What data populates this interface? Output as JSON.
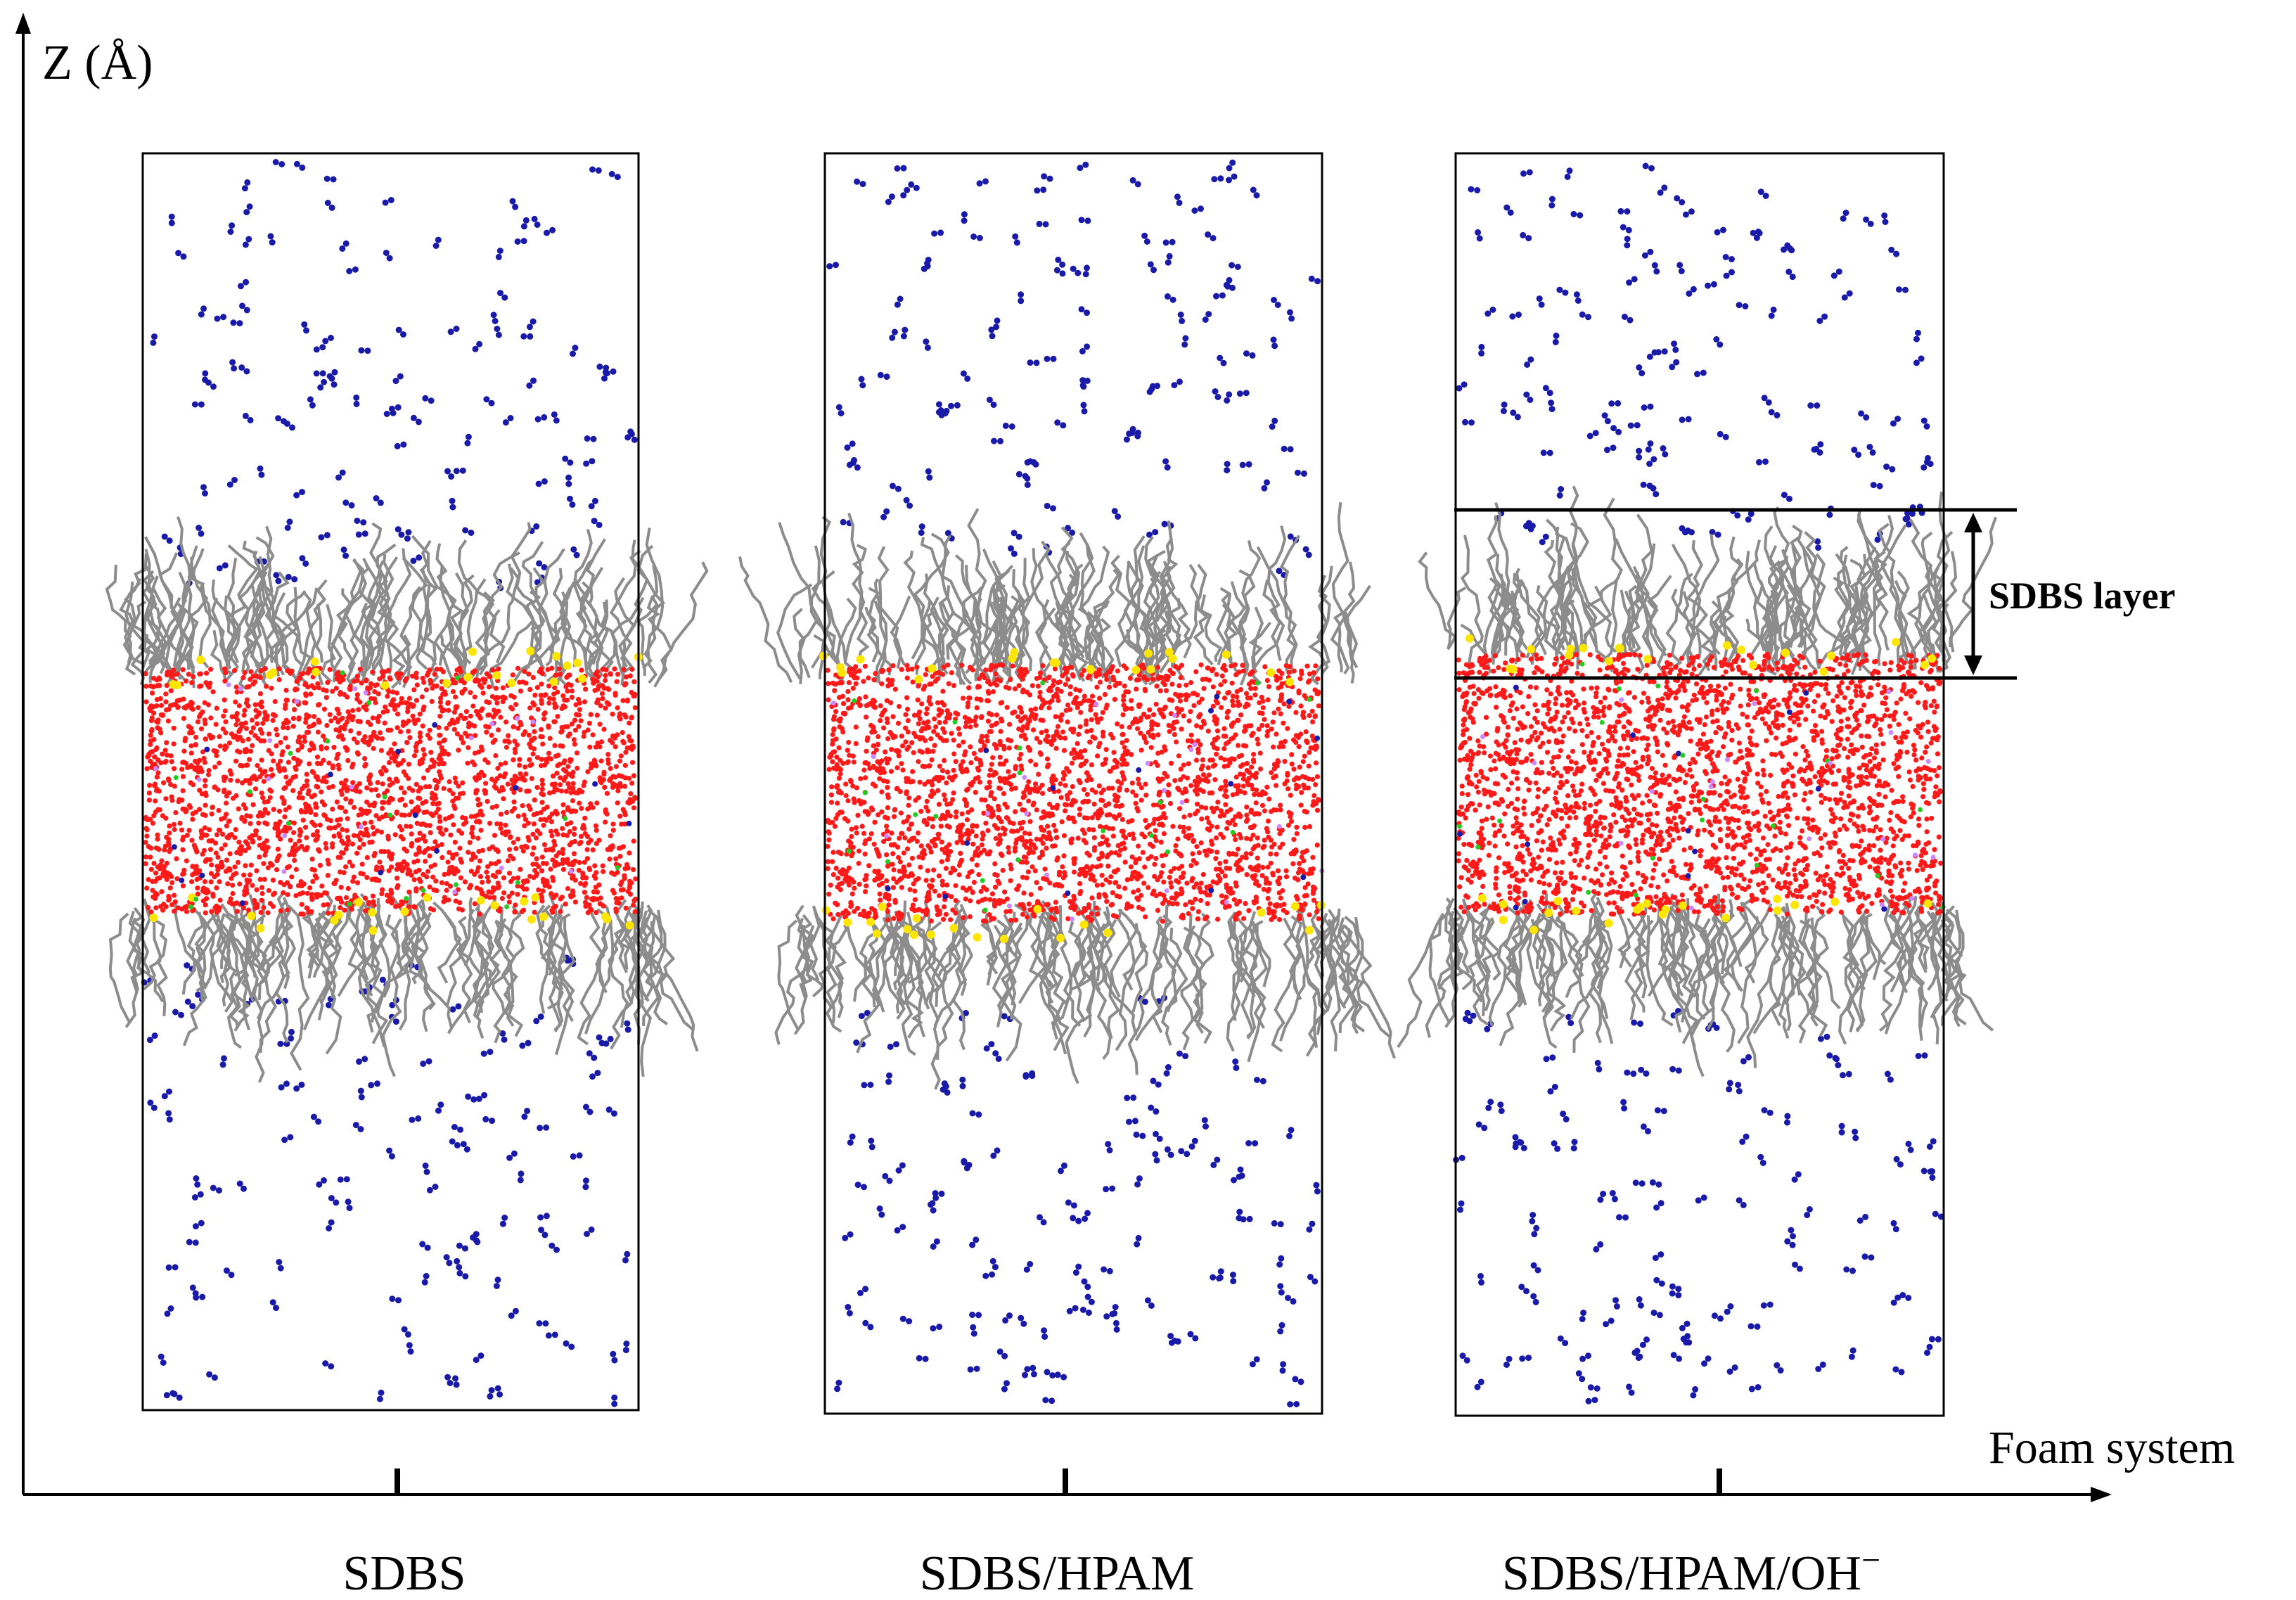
{
  "axes": {
    "y_label": "Z (Å)",
    "x_label": "Foam system"
  },
  "systems": [
    {
      "name": "SDBS"
    },
    {
      "name": "SDBS/HPAM"
    },
    {
      "name": "SDBS/HPAM/OH"
    }
  ],
  "superscript_minus": "−",
  "annotation": {
    "label": "SDBS layer"
  },
  "colors": {
    "water": "#ff1a1a",
    "counterion": "#1a1aa8",
    "tail": "#8c8c8c",
    "headgroup": "#ffe600",
    "minor_green": "#22cc22",
    "minor_violet": "#cc88ff",
    "box": "#000000"
  },
  "icons": [
    "arrow-up-icon",
    "arrow-right-icon",
    "double-arrow-icon"
  ]
}
